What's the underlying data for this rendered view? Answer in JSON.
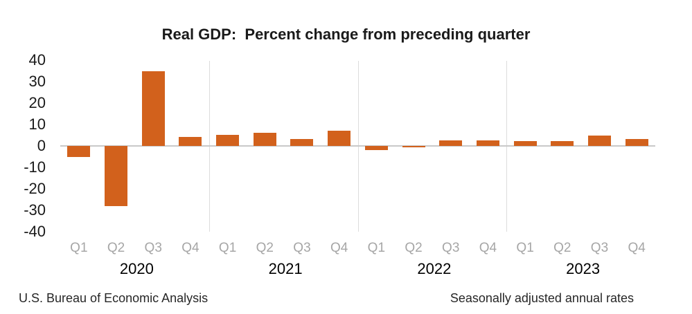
{
  "title": "Real GDP:  Percent change from preceding quarter",
  "footer": {
    "left": "U.S. Bureau of Economic Analysis",
    "right": "Seasonally adjusted annual rates"
  },
  "colors": {
    "bar": "#D2611C",
    "quarter_label": "#A6A6A6",
    "zero_line": "#C8C8C8",
    "year_divider": "#DCDCDC",
    "text": "#1A1A1A",
    "footer_text": "#262626",
    "background": "#FFFFFF"
  },
  "chart_data": {
    "type": "bar",
    "title": "Real GDP:  Percent change from preceding quarter",
    "xlabel": "",
    "ylabel": "",
    "ylim": [
      -40,
      40
    ],
    "yticks": [
      40,
      30,
      20,
      10,
      0,
      -10,
      -20,
      -30,
      -40
    ],
    "grid": "vertical dividers between years only",
    "legend": "none",
    "unit": "percent change, seasonally adjusted annual rate",
    "years": [
      {
        "year": "2020",
        "quarters": [
          "Q1",
          "Q2",
          "Q3",
          "Q4"
        ],
        "values": [
          -5.3,
          -28.0,
          34.8,
          4.2
        ]
      },
      {
        "year": "2021",
        "quarters": [
          "Q1",
          "Q2",
          "Q3",
          "Q4"
        ],
        "values": [
          5.2,
          6.2,
          3.3,
          7.0
        ]
      },
      {
        "year": "2022",
        "quarters": [
          "Q1",
          "Q2",
          "Q3",
          "Q4"
        ],
        "values": [
          -2.0,
          -0.6,
          2.7,
          2.6
        ]
      },
      {
        "year": "2023",
        "quarters": [
          "Q1",
          "Q2",
          "Q3",
          "Q4"
        ],
        "values": [
          2.2,
          2.1,
          4.9,
          3.3
        ]
      }
    ]
  }
}
